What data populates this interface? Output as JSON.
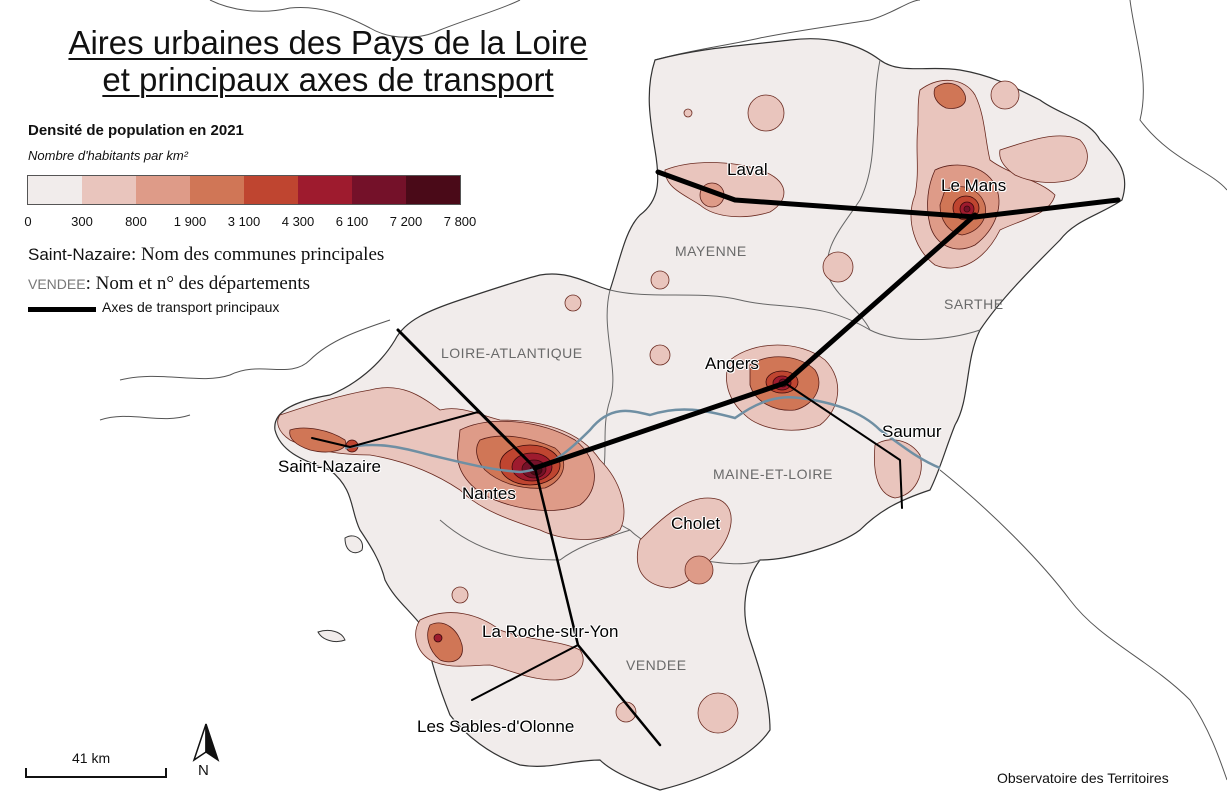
{
  "title": {
    "line1": "Aires urbaines des Pays de la Loire",
    "line2": "et principaux axes de transport"
  },
  "legend": {
    "heading": "Densité de population en 2021",
    "subheading": "Nombre d'habitants par km²",
    "classes": [
      "#f1eceb",
      "#e9c5bd",
      "#de9b88",
      "#d07656",
      "#bf4530",
      "#9e1b2e",
      "#741129",
      "#4a0a18"
    ],
    "breaks": [
      "0",
      "300",
      "800",
      "1 900",
      "3 100",
      "4 300",
      "6 100",
      "7 200",
      "7 800"
    ],
    "communes_example": "Saint-Nazaire",
    "communes_text": ": Nom des communes principales",
    "dept_example": "VENDEE",
    "dept_text": ": Nom et n° des départements",
    "axes_text": "Axes de transport principaux"
  },
  "cities": {
    "laval": "Laval",
    "le_mans": "Le Mans",
    "angers": "Angers",
    "saumur": "Saumur",
    "saint_nazaire": "Saint-Nazaire",
    "nantes": "Nantes",
    "cholet": "Cholet",
    "la_roche": "La Roche-sur-Yon",
    "sables": "Les Sables-d'Olonne"
  },
  "departments": {
    "mayenne": "MAYENNE",
    "sarthe": "SARTHE",
    "loire_atlantique": "LOIRE-ATLANTIQUE",
    "maine_et_loire": "MAINE-ET-LOIRE",
    "vendee": "VENDEE"
  },
  "scale": {
    "label": "41 km"
  },
  "north": {
    "label": "N"
  },
  "credit": "Observatoire des Territoires",
  "colors": {
    "region_fill": "#f1eceb",
    "border": "#555555",
    "river": "#6f8fa3",
    "road": "#000000"
  }
}
